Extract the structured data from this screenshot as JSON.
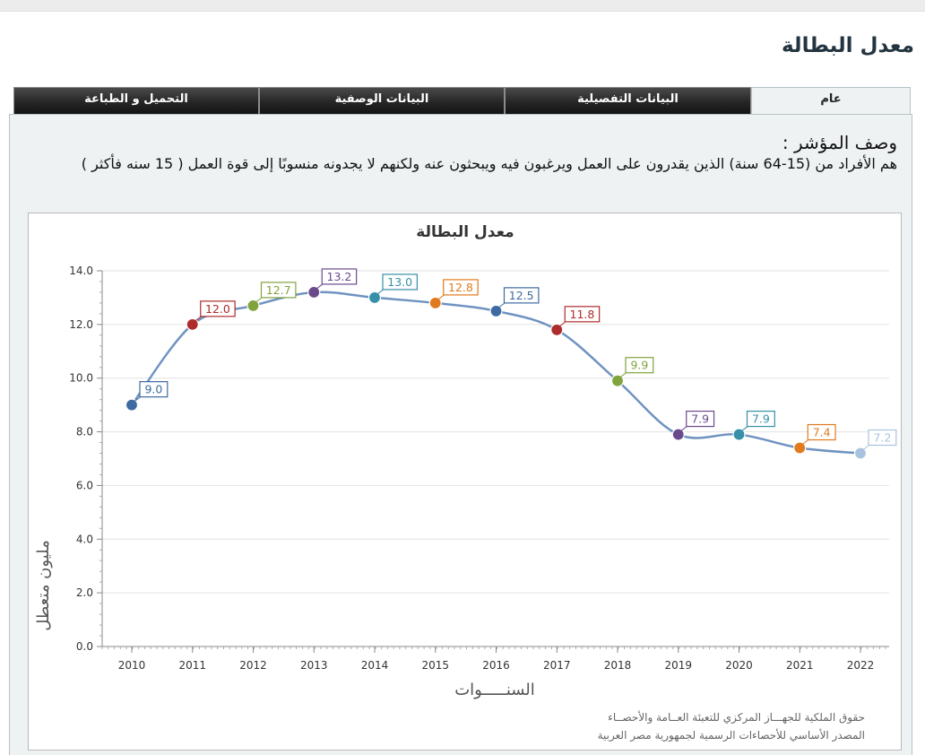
{
  "page": {
    "title": "معدل البطالة"
  },
  "tabs": [
    {
      "label": "التحميل و الطباعة",
      "active": false
    },
    {
      "label": "البيانات الوصفية",
      "active": false
    },
    {
      "label": "البيانات التفصيلية",
      "active": false
    },
    {
      "label": "عام",
      "active": true
    }
  ],
  "indicator": {
    "label": "وصف المؤشر :",
    "text": "هم الأفراد من (15-64 سنة) الذين يقدرون على العمل ويرغبون فيه ويبحثون عنه ولكنهم لا يجدونه منسوبًا إلى قوة العمل ( 15 سنه فأكثر )"
  },
  "chart_data": {
    "type": "line",
    "title": "معدل البطالة",
    "xlabel": "السنـــــوات",
    "ylabel": "مليون متعطل",
    "categories": [
      "2010",
      "2011",
      "2012",
      "2013",
      "2014",
      "2015",
      "2016",
      "2017",
      "2018",
      "2019",
      "2020",
      "2021",
      "2022"
    ],
    "values": [
      9.0,
      12.0,
      12.7,
      13.2,
      13.0,
      12.8,
      12.5,
      11.8,
      9.9,
      7.9,
      7.9,
      7.4,
      7.2
    ],
    "value_labels": [
      "9.0",
      "12.0",
      "12.7",
      "13.2",
      "13.0",
      "12.8",
      "12.5",
      "11.8",
      "9.9",
      "7.9",
      "7.9",
      "7.4",
      "7.2"
    ],
    "yticks": [
      "0.0",
      "2.0",
      "4.0",
      "6.0",
      "8.0",
      "10.0",
      "12.0",
      "14.0"
    ],
    "ylim": [
      0,
      14
    ],
    "grid": true,
    "legend": "none",
    "line_color": "#6f93c0",
    "point_colors": [
      "#3d6aa1",
      "#ad2b2b",
      "#80a33e",
      "#6b4a8c",
      "#3590a8",
      "#e07a1d",
      "#3d6aa1",
      "#ad2b2b",
      "#80a33e",
      "#6b4a8c",
      "#3590a8",
      "#e07a1d",
      "#a9c3df"
    ]
  },
  "footer": {
    "line1": "حقوق الملكية للجهـــاز المركزي للتعبئة العــامة والأحصــاء",
    "line2": "المصدر الأساسي للأحصاءات الرسمية لجمهورية مصر العربية"
  }
}
